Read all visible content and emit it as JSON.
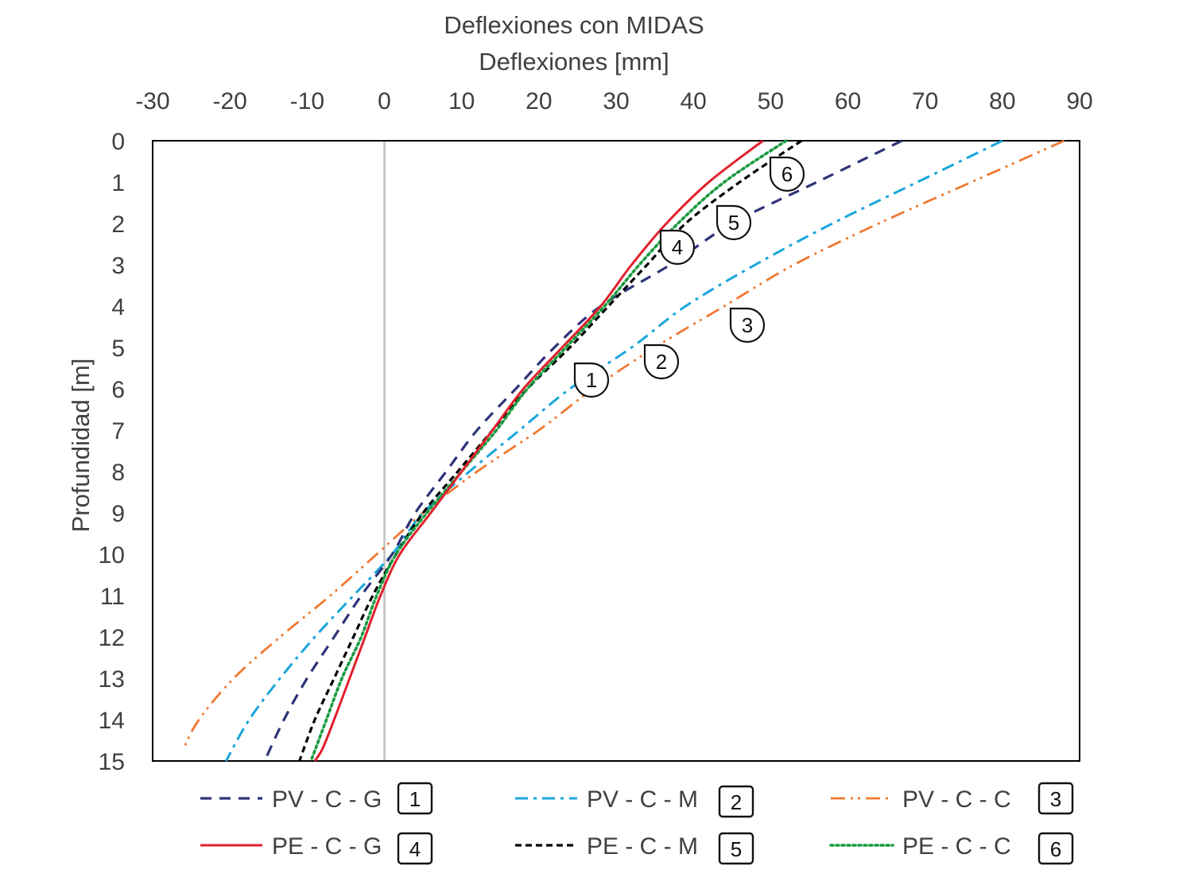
{
  "chart_data": {
    "type": "line",
    "title": "Deflexiones con MIDAS",
    "xlabel": "Deflexiones [mm]",
    "ylabel": "Profundidad [m]",
    "xlim": [
      -30,
      90
    ],
    "ylim": [
      0,
      15
    ],
    "x_ticks": [
      "-30",
      "-20",
      "-10",
      "0",
      "10",
      "20",
      "30",
      "40",
      "50",
      "60",
      "70",
      "80",
      "90"
    ],
    "y_ticks": [
      "0",
      "1",
      "2",
      "3",
      "4",
      "5",
      "6",
      "7",
      "8",
      "9",
      "10",
      "11",
      "12",
      "13",
      "14",
      "15"
    ],
    "y_inverted": true,
    "x_axis_position": "top",
    "grid": false,
    "zero_line": true,
    "legend_position": "bottom",
    "series": [
      {
        "name": "PV - C - G",
        "legend_number": "1",
        "color": "#2e3478",
        "dash": "dash",
        "points": [
          [
            67,
            0
          ],
          [
            56,
            1
          ],
          [
            45,
            2
          ],
          [
            37,
            3
          ],
          [
            28,
            4
          ],
          [
            22,
            5
          ],
          [
            17,
            6
          ],
          [
            12,
            7
          ],
          [
            8,
            8
          ],
          [
            4,
            9
          ],
          [
            1,
            10
          ],
          [
            -3,
            11
          ],
          [
            -6.5,
            12
          ],
          [
            -10,
            13
          ],
          [
            -13,
            14
          ],
          [
            -15.5,
            15
          ]
        ]
      },
      {
        "name": "PV - C - M",
        "legend_number": "2",
        "color": "#1aa6dc",
        "dash": "dashdot",
        "points": [
          [
            80,
            0
          ],
          [
            69,
            1
          ],
          [
            58,
            2
          ],
          [
            48,
            3
          ],
          [
            39,
            4
          ],
          [
            32,
            5
          ],
          [
            24,
            6
          ],
          [
            17.5,
            7
          ],
          [
            11,
            8
          ],
          [
            5,
            9
          ],
          [
            1,
            10
          ],
          [
            -4,
            11
          ],
          [
            -9,
            12
          ],
          [
            -13.5,
            13
          ],
          [
            -17.5,
            14
          ],
          [
            -20.5,
            15
          ]
        ]
      },
      {
        "name": "PV - C - C",
        "legend_number": "3",
        "color": "#f07830",
        "dash": "dashdotdot",
        "points": [
          [
            88,
            0
          ],
          [
            76,
            1
          ],
          [
            64,
            2
          ],
          [
            53,
            3
          ],
          [
            44,
            4
          ],
          [
            35,
            5
          ],
          [
            27,
            6
          ],
          [
            20,
            7
          ],
          [
            12,
            8
          ],
          [
            5,
            9
          ],
          [
            -1,
            10
          ],
          [
            -7,
            11
          ],
          [
            -13.5,
            12
          ],
          [
            -19.5,
            13
          ],
          [
            -24,
            14
          ],
          [
            -26,
            14.7
          ]
        ]
      },
      {
        "name": "PE - C - G",
        "legend_number": "4",
        "color": "#e0202c",
        "dash": "solid",
        "points": [
          [
            49,
            0
          ],
          [
            42,
            1
          ],
          [
            36.5,
            2
          ],
          [
            32,
            3
          ],
          [
            28,
            4
          ],
          [
            23,
            5
          ],
          [
            18,
            6
          ],
          [
            14,
            7
          ],
          [
            10,
            8
          ],
          [
            6,
            9
          ],
          [
            2,
            10
          ],
          [
            -0.5,
            11
          ],
          [
            -2.5,
            12
          ],
          [
            -4.5,
            13
          ],
          [
            -6.5,
            14
          ],
          [
            -8,
            14.7
          ],
          [
            -9,
            15
          ]
        ]
      },
      {
        "name": "PE - C - M",
        "legend_number": "5",
        "color": "#000000",
        "dash": "shortdash",
        "points": [
          [
            54,
            0
          ],
          [
            46,
            1
          ],
          [
            39,
            2
          ],
          [
            34,
            3
          ],
          [
            29,
            4
          ],
          [
            24,
            5
          ],
          [
            18.5,
            6
          ],
          [
            14,
            7
          ],
          [
            9.5,
            8
          ],
          [
            5,
            9
          ],
          [
            1.5,
            10
          ],
          [
            -1.5,
            11
          ],
          [
            -4,
            12
          ],
          [
            -6.5,
            13
          ],
          [
            -9,
            14
          ],
          [
            -11,
            15
          ]
        ]
      },
      {
        "name": "PE - C - C",
        "legend_number": "6",
        "color": "#1a9a40",
        "dash": "dot",
        "points": [
          [
            52,
            0
          ],
          [
            44,
            1
          ],
          [
            38,
            2
          ],
          [
            33,
            3
          ],
          [
            28.5,
            4
          ],
          [
            23.5,
            5
          ],
          [
            18.5,
            6
          ],
          [
            14.5,
            7
          ],
          [
            10,
            8
          ],
          [
            5.5,
            9
          ],
          [
            1.5,
            10
          ],
          [
            -1,
            11
          ],
          [
            -3,
            12
          ],
          [
            -5.5,
            13
          ],
          [
            -7.5,
            14
          ],
          [
            -9.5,
            15
          ]
        ]
      }
    ]
  }
}
